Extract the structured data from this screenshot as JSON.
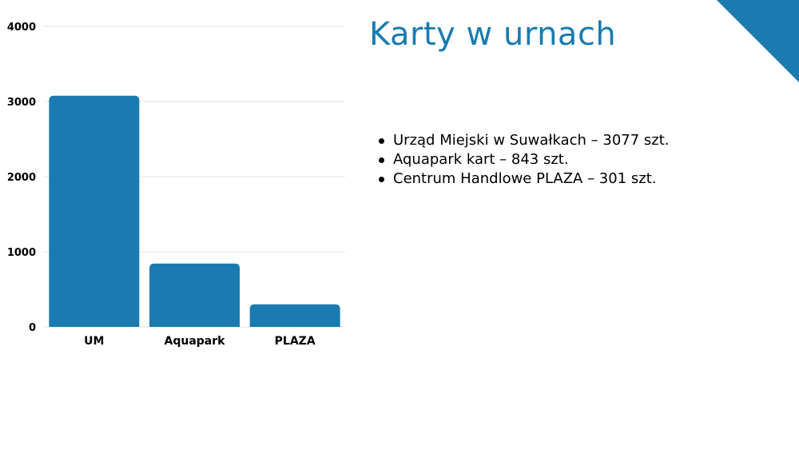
{
  "title": "Karty w urnach",
  "bullets": [
    "Urząd Miejski w Suwałkach – 3077 szt.",
    "Aquapark kart – 843 szt.",
    "Centrum Handlowe PLAZA – 301 szt."
  ],
  "colors": {
    "accent": "#1a7bb0",
    "bar": "#1a7bb0",
    "grid": "#e6e6e6"
  },
  "chart_data": {
    "type": "bar",
    "categories": [
      "UM",
      "Aquapark",
      "PLAZA"
    ],
    "values": [
      3077,
      843,
      301
    ],
    "ylim": [
      0,
      4000
    ],
    "yticks": [
      0,
      1000,
      2000,
      3000,
      4000
    ],
    "ytick_labels": [
      "0",
      "1000",
      "2000",
      "3000",
      "4000"
    ],
    "grid": true,
    "legend": "none"
  }
}
